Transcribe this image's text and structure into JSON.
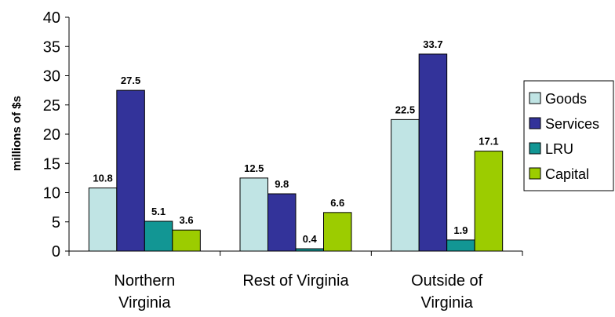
{
  "chart_data": {
    "type": "bar",
    "title": "",
    "xlabel": "",
    "ylabel": "millions of $s",
    "ylim": [
      0,
      40
    ],
    "yticks": [
      0,
      5,
      10,
      15,
      20,
      25,
      30,
      35,
      40
    ],
    "grid": false,
    "legend_position": "right",
    "categories": [
      [
        "Northern",
        "Virginia"
      ],
      [
        "Rest of Virginia"
      ],
      [
        "Outside of",
        "Virginia"
      ]
    ],
    "series": [
      {
        "name": "Goods",
        "color": "#c0e4e4",
        "values": [
          10.8,
          12.5,
          22.5
        ],
        "labels": [
          "10.8",
          "12.5",
          "22.5"
        ]
      },
      {
        "name": "Services",
        "color": "#33339a",
        "values": [
          27.5,
          9.8,
          33.7
        ],
        "labels": [
          "27.5",
          "9.8",
          "33.7"
        ]
      },
      {
        "name": "LRU",
        "color": "#129694",
        "values": [
          5.1,
          0.4,
          1.9
        ],
        "labels": [
          "5.1",
          "0.4",
          "1.9"
        ]
      },
      {
        "name": "Capital",
        "color": "#9ccc00",
        "values": [
          3.6,
          6.6,
          17.1
        ],
        "labels": [
          "3.6",
          "6.6",
          "17.1"
        ]
      }
    ]
  }
}
